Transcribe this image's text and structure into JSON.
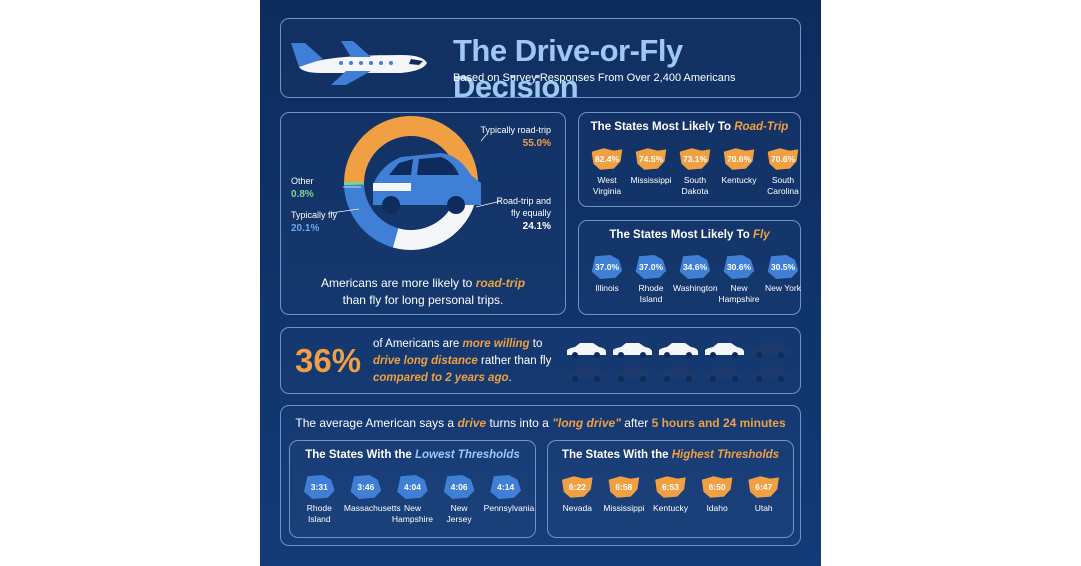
{
  "header": {
    "title": "The Drive-or-Fly Decision",
    "subtitle": "Based on Survey Responses From Over 2,400 Americans"
  },
  "donut": {
    "segments": [
      {
        "name": "Typically road-trip",
        "value": 55.0,
        "value_label": "55.0%",
        "color": "#f0a043"
      },
      {
        "name": "Road-trip and fly equally",
        "value": 24.1,
        "value_label": "24.1%",
        "color": "#f4f6fa"
      },
      {
        "name": "Typically fly",
        "value": 20.1,
        "value_label": "20.1%",
        "color": "#3f7fd6"
      },
      {
        "name": "Other",
        "value": 0.8,
        "value_label": "0.8%",
        "color": "#7fd68a"
      }
    ],
    "caption": {
      "line1": [
        "Americans are more likely to ",
        "road-trip"
      ],
      "line2": "than fly for long personal trips."
    }
  },
  "road_trip_states": {
    "title": [
      "The States Most Likely To ",
      "Road-Trip"
    ],
    "items": [
      {
        "pct": "82.4%",
        "name": "West Virginia"
      },
      {
        "pct": "74.5%",
        "name": "Mississippi"
      },
      {
        "pct": "73.1%",
        "name": "South Dakota"
      },
      {
        "pct": "70.6%",
        "name": "Kentucky"
      },
      {
        "pct": "70.6%",
        "name": "South Carolina"
      }
    ]
  },
  "fly_states": {
    "title": [
      "The States Most Likely To ",
      "Fly"
    ],
    "items": [
      {
        "pct": "37.0%",
        "name": "Illinois"
      },
      {
        "pct": "37.0%",
        "name": "Rhode Island"
      },
      {
        "pct": "34.6%",
        "name": "Washington"
      },
      {
        "pct": "30.6%",
        "name": "New Hampshire"
      },
      {
        "pct": "30.5%",
        "name": "New York"
      }
    ]
  },
  "willing": {
    "stat": "36%",
    "parts": [
      "of Americans are ",
      "more willing",
      " to",
      "drive long distance",
      " rather than fly",
      "compared to 2 years ago",
      "."
    ]
  },
  "long_drive": {
    "parts": [
      "The average American says a ",
      "drive",
      " turns into a ",
      "\"long drive\"",
      " after ",
      "5 hours and 24 minutes"
    ],
    "lowest": {
      "title": [
        "The States With the ",
        "Lowest Thresholds"
      ],
      "items": [
        {
          "time": "3:31",
          "name": "Rhode Island"
        },
        {
          "time": "3:46",
          "name": "Massachusetts"
        },
        {
          "time": "4:04",
          "name": "New Hampshire"
        },
        {
          "time": "4:06",
          "name": "New Jersey"
        },
        {
          "time": "4:14",
          "name": "Pennsylvania"
        }
      ]
    },
    "highest": {
      "title": [
        "The States With the ",
        "Highest Thresholds"
      ],
      "items": [
        {
          "time": "6:22",
          "name": "Nevada"
        },
        {
          "time": "6:58",
          "name": "Mississippi"
        },
        {
          "time": "6:53",
          "name": "Kentucky"
        },
        {
          "time": "6:50",
          "name": "Idaho"
        },
        {
          "time": "6:47",
          "name": "Utah"
        }
      ]
    }
  }
}
